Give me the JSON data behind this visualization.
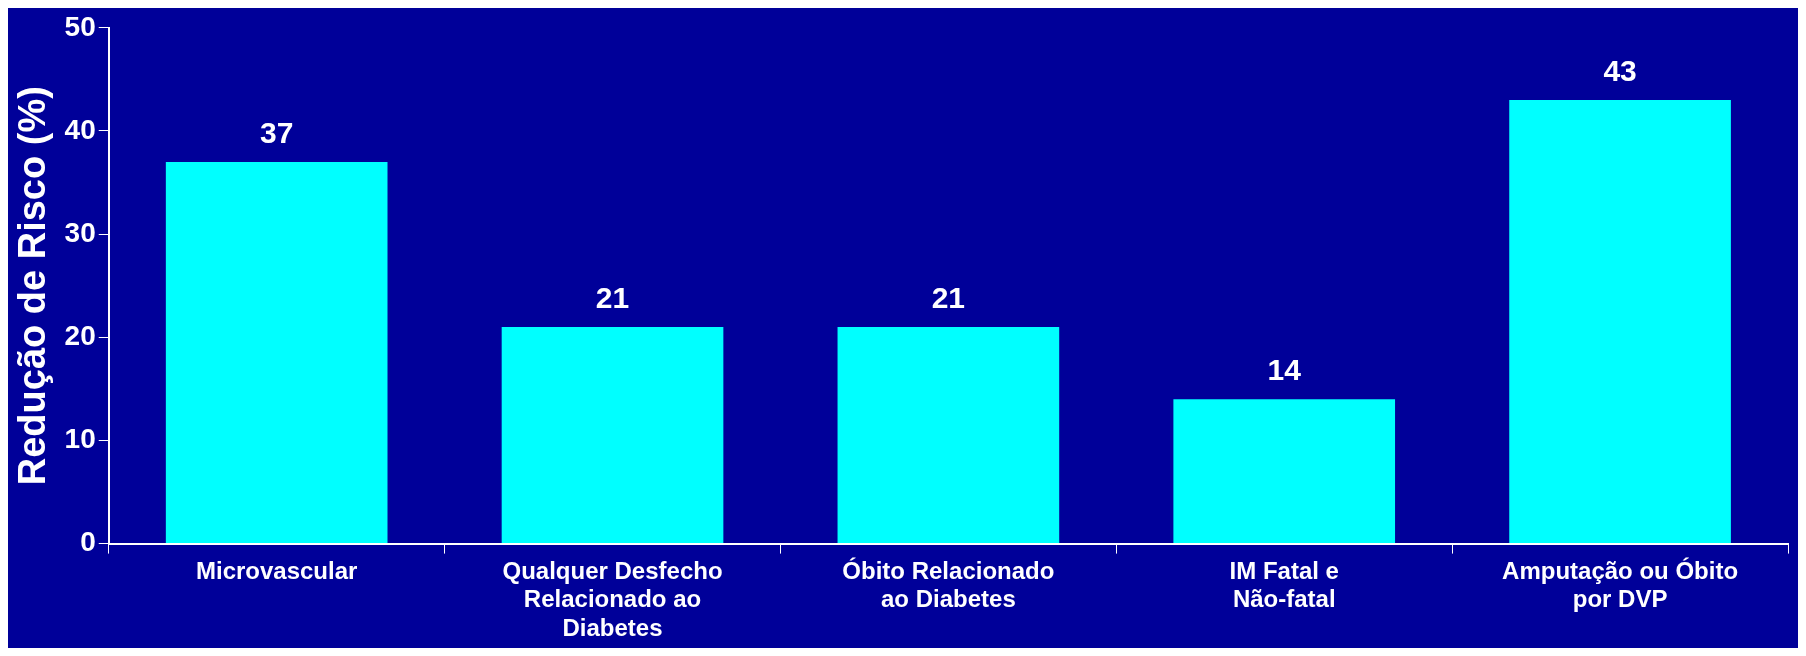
{
  "chart_data": {
    "type": "bar",
    "ylabel": "Redução de Risco (%)",
    "categories": [
      "Microvascular",
      "Qualquer Desfecho Relacionado ao Diabetes",
      "Óbito Relacionado ao Diabetes",
      "IM Fatal e Não-fatal",
      "Amputação ou Óbito por DVP"
    ],
    "values": [
      37,
      21,
      21,
      14,
      43
    ],
    "color": "#00ffff",
    "ylim": [
      0,
      50
    ],
    "yticks": [
      0,
      10,
      20,
      30,
      40,
      50
    ],
    "grid": false,
    "data_labels": true,
    "legend": false
  }
}
